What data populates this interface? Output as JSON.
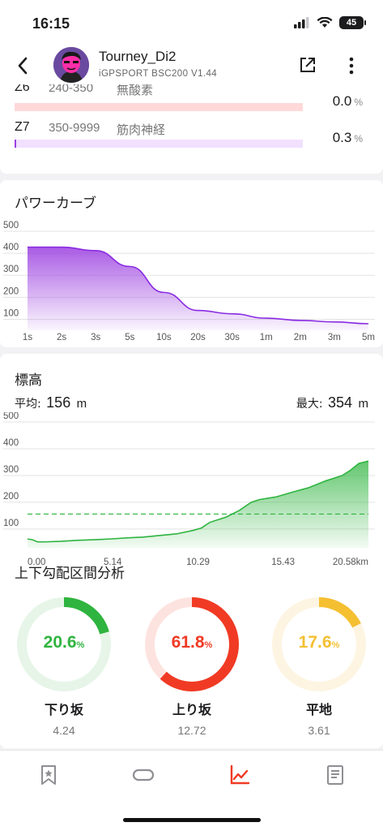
{
  "status": {
    "time": "16:15",
    "battery": "45"
  },
  "header": {
    "username": "Tourney_Di2",
    "device": "iGPSPORT BSC200 V1.44"
  },
  "icons": {
    "back": "chevron-left-icon",
    "share": "share-icon",
    "more": "more-vertical-icon"
  },
  "zones": [
    {
      "name": "Z6",
      "range": "240-350",
      "label": "無酸素",
      "percent": "0.0",
      "unit": "%",
      "value": 0.0,
      "color": "#ffd3d3",
      "fill": "#f06060"
    },
    {
      "name": "Z7",
      "range": "350-9999",
      "label": "筋肉神経",
      "percent": "0.3",
      "unit": "%",
      "value": 0.3,
      "color": "#f0dcff",
      "fill": "#9b3fe0"
    }
  ],
  "power": {
    "title": "パワーカーブ",
    "chart_data": {
      "type": "area",
      "x": [
        "1s",
        "2s",
        "3s",
        "5s",
        "10s",
        "20s",
        "30s",
        "1m",
        "2m",
        "3m",
        "5m"
      ],
      "y_ticks": [
        100,
        200,
        300,
        400,
        500
      ],
      "ylim": [
        50,
        500
      ],
      "values": [
        428,
        428,
        412,
        340,
        222,
        140,
        125,
        105,
        95,
        88,
        80
      ],
      "color": "#9b3fe0"
    }
  },
  "elevation": {
    "title": "標高",
    "avg_label": "平均:",
    "avg_value": "156",
    "avg_unit": "m",
    "max_label": "最大:",
    "max_value": "354",
    "max_unit": "m",
    "chart_data": {
      "type": "area",
      "x_ticks": [
        "0.00",
        "5.14",
        "10.29",
        "15.43",
        "20.58km"
      ],
      "x_tick_values": [
        0,
        5.14,
        10.29,
        15.43,
        20.58
      ],
      "y_ticks": [
        100,
        200,
        300,
        400,
        500
      ],
      "ylim": [
        30,
        500
      ],
      "average": 156,
      "x": [
        0,
        0.3,
        0.6,
        1,
        2,
        3,
        4,
        5,
        6,
        7,
        8,
        9,
        10,
        10.5,
        11,
        12,
        12.8,
        13.5,
        14,
        15,
        16,
        17,
        18,
        19,
        19.5,
        20,
        20.3,
        20.58
      ],
      "values": [
        63,
        60,
        52,
        52,
        54,
        58,
        60,
        63,
        67,
        70,
        76,
        82,
        95,
        104,
        125,
        145,
        170,
        200,
        210,
        220,
        238,
        255,
        280,
        300,
        320,
        345,
        350,
        354
      ],
      "color": "#2fb43f"
    }
  },
  "gradient": {
    "title": "上下勾配区間分析",
    "items": [
      {
        "percent": "20.6",
        "value": 20.6,
        "label": "下り坂",
        "sub": "4.24",
        "color": "#2fb43f",
        "track": "#e6f5e8"
      },
      {
        "percent": "61.8",
        "value": 61.8,
        "label": "上り坂",
        "sub": "12.72",
        "color": "#f03a24",
        "track": "#fde3df"
      },
      {
        "percent": "17.6",
        "value": 17.6,
        "label": "平地",
        "sub": "3.61",
        "color": "#f5bf32",
        "track": "#fdf5e2"
      }
    ]
  },
  "tabs": [
    {
      "icon": "bookmark-star-icon"
    },
    {
      "icon": "link-icon"
    },
    {
      "icon": "trend-chart-icon",
      "active": true
    },
    {
      "icon": "document-icon"
    }
  ]
}
